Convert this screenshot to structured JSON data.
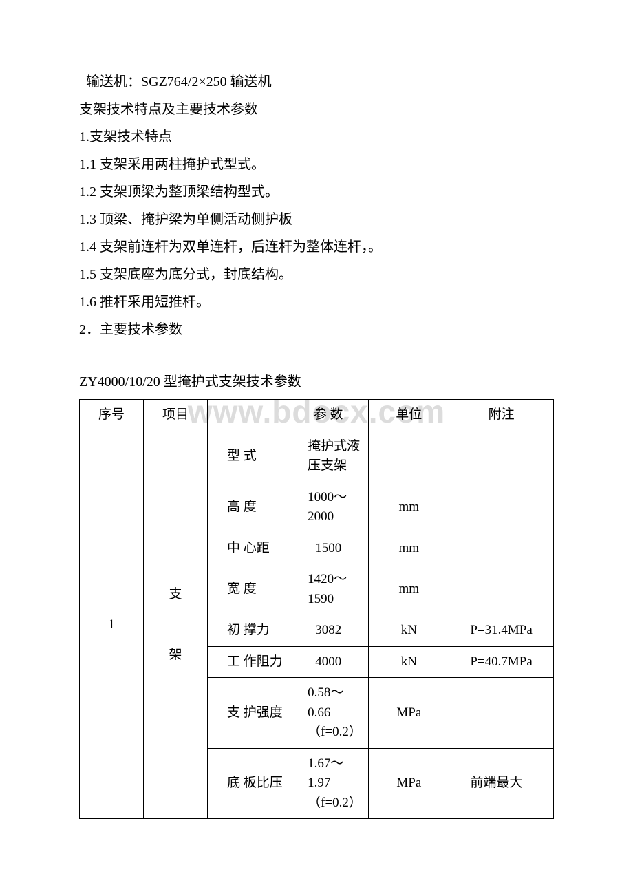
{
  "watermark": "www.bdocx.com",
  "lines": {
    "l1": "输送机：SGZ764/2×250 输送机",
    "l2": "支架技术特点及主要技术参数",
    "l3": "1.支架技术特点",
    "l4": "1.1 支架采用两柱掩护式型式。",
    "l5": "1.2 支架顶梁为整顶梁结构型式。",
    "l6": "1.3 顶梁、掩护梁为单侧活动侧护板",
    "l7": "1.4 支架前连杆为双单连杆，后连杆为整体连杆，。",
    "l8": "1.5 支架底座为底分式，封底结构。",
    "l9": "1.6 推杆采用短推杆。",
    "l10": "2．主要技术参数",
    "tableTitle": "ZY4000/10/20 型掩护式支架技术参数"
  },
  "table": {
    "headers": {
      "seq": "序号",
      "item": "项目",
      "blank": "",
      "param": "参 数",
      "unit": "单位",
      "note": "附注"
    },
    "body": {
      "seq": "1",
      "item_top": "支",
      "item_bot": "架",
      "rows": [
        {
          "label": "型 式",
          "param": "掩护式液压支架",
          "unit": "",
          "note": ""
        },
        {
          "label": "高 度",
          "param": "1000～2000",
          "unit": "mm",
          "note": ""
        },
        {
          "label": "中 心距",
          "param": "1500",
          "unit": "mm",
          "note": ""
        },
        {
          "label": "宽 度",
          "param": "1420～1590",
          "unit": "mm",
          "note": ""
        },
        {
          "label": "初 撑力",
          "param": "3082",
          "unit": "kN",
          "note": "P=31.4MPa"
        },
        {
          "label": "工 作阻力",
          "param": "4000",
          "unit": "kN",
          "note": "P=40.7MPa"
        },
        {
          "label": "支 护强度",
          "param": "0.58～0.66（f=0.2）",
          "unit": "MPa",
          "note": ""
        },
        {
          "label": "底 板比压",
          "param": "1.67～1.97（f=0.2）",
          "unit": "MPa",
          "note": "前端最大"
        }
      ]
    }
  }
}
